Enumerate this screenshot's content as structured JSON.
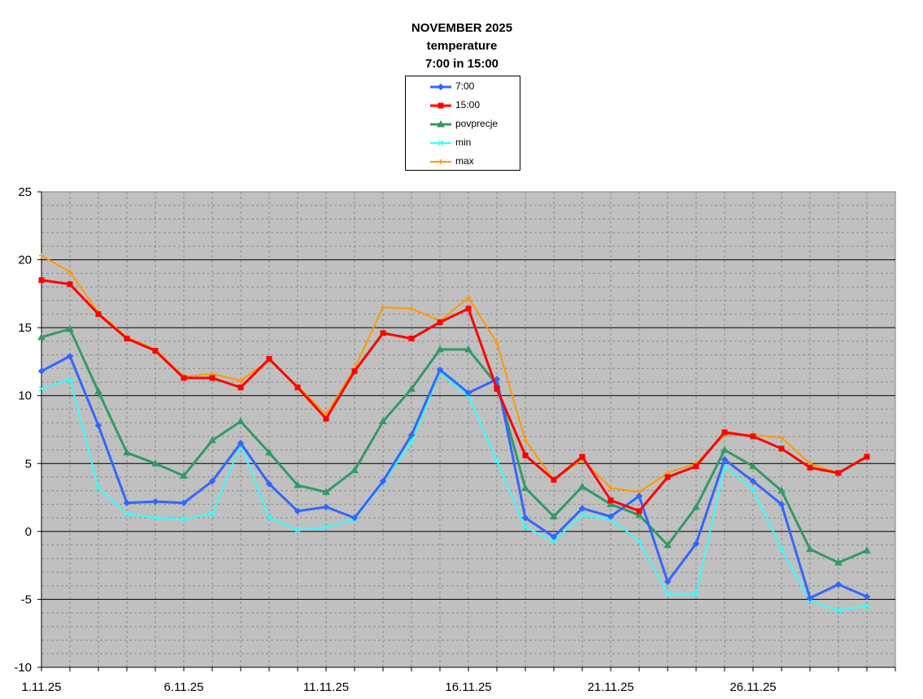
{
  "chart_data": {
    "type": "line",
    "title_lines": [
      "NOVEMBER 2025",
      "temperature",
      "7:00 in 15:00"
    ],
    "x": [
      "1.11.25",
      "2.11.25",
      "3.11.25",
      "4.11.25",
      "5.11.25",
      "6.11.25",
      "7.11.25",
      "8.11.25",
      "9.11.25",
      "10.11.25",
      "11.11.25",
      "12.11.25",
      "13.11.25",
      "14.11.25",
      "15.11.25",
      "16.11.25",
      "17.11.25",
      "18.11.25",
      "19.11.25",
      "20.11.25",
      "21.11.25",
      "22.11.25",
      "23.11.25",
      "24.11.25",
      "25.11.25",
      "26.11.25",
      "27.11.25",
      "28.11.25",
      "29.11.25",
      "30.11.25"
    ],
    "x_tick_labels": [
      "1.11.25",
      "6.11.25",
      "11.11.25",
      "16.11.25",
      "21.11.25",
      "26.11.25"
    ],
    "ylim": [
      -10,
      25
    ],
    "y_ticks": [
      -10,
      -5,
      0,
      5,
      10,
      15,
      20,
      25
    ],
    "grid": true,
    "plot_background": "#c0c0c0",
    "legend_position": "top-center",
    "series": [
      {
        "name": "7:00",
        "color": "#3366ff",
        "marker": "diamond",
        "values": [
          11.8,
          12.9,
          7.8,
          2.1,
          2.2,
          2.1,
          3.7,
          6.5,
          3.5,
          1.5,
          1.8,
          1.0,
          3.7,
          7.1,
          11.9,
          10.2,
          11.2,
          1.0,
          -0.4,
          1.7,
          1.1,
          2.6,
          -3.7,
          -0.9,
          5.3,
          3.7,
          2.0,
          -4.9,
          -3.9,
          -4.8
        ]
      },
      {
        "name": "15:00",
        "color": "#ff0000",
        "marker": "square",
        "values": [
          18.5,
          18.2,
          16.0,
          14.2,
          13.3,
          11.3,
          11.3,
          10.6,
          12.7,
          10.6,
          8.3,
          11.8,
          14.6,
          14.2,
          15.4,
          16.4,
          10.5,
          5.6,
          3.8,
          5.5,
          2.3,
          1.5,
          4.0,
          4.8,
          7.3,
          7.0,
          6.1,
          4.7,
          4.3,
          5.5
        ]
      },
      {
        "name": "povprecje",
        "color": "#339966",
        "marker": "triangle",
        "values": [
          14.3,
          14.9,
          10.3,
          5.8,
          5.0,
          4.1,
          6.7,
          8.1,
          5.8,
          3.4,
          2.9,
          4.5,
          8.1,
          10.5,
          13.4,
          13.4,
          10.8,
          3.2,
          1.1,
          3.3,
          2.0,
          1.2,
          -1.0,
          1.8,
          6.0,
          4.8,
          3.0,
          -1.3,
          -2.3,
          -1.4
        ]
      },
      {
        "name": "min",
        "color": "#33ffff",
        "marker": "x",
        "values": [
          10.5,
          11.2,
          3.2,
          1.3,
          1.0,
          0.9,
          1.3,
          6.4,
          1.0,
          0.1,
          0.3,
          0.9,
          3.6,
          6.6,
          11.7,
          10.0,
          5.2,
          0.3,
          -0.7,
          1.2,
          0.9,
          -0.7,
          -4.6,
          -4.6,
          4.8,
          3.1,
          -1.3,
          -5.1,
          -5.8,
          -5.5
        ]
      },
      {
        "name": "max",
        "color": "#ff9900",
        "marker": "plus",
        "values": [
          20.3,
          19.1,
          16.1,
          14.3,
          13.4,
          11.4,
          11.6,
          11.1,
          12.6,
          10.7,
          8.6,
          12.0,
          16.5,
          16.4,
          15.5,
          17.2,
          13.9,
          6.7,
          3.8,
          5.3,
          3.2,
          2.9,
          4.3,
          5.0,
          7.1,
          7.1,
          6.9,
          5.0,
          4.3,
          5.6
        ]
      }
    ]
  }
}
